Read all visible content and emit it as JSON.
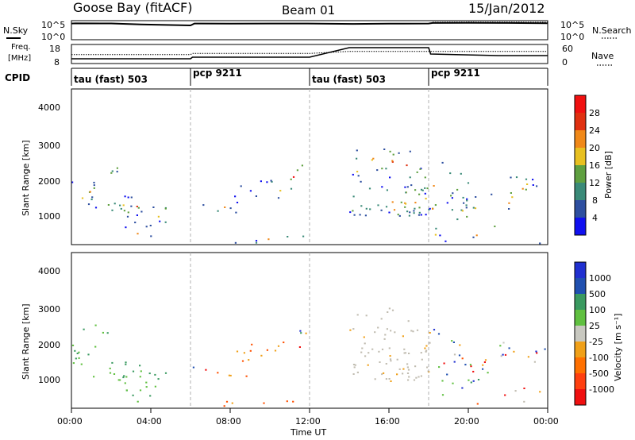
{
  "header": {
    "station": "Goose Bay (fitACF)",
    "beam": "Beam 01",
    "date": "15/Jan/2012"
  },
  "left_labels": {
    "nsky": "N.Sky",
    "freq_line1": "Freq.",
    "freq_line2": "[MHz]",
    "cpid": "CPID"
  },
  "right_labels": {
    "nsearch": "N.Search",
    "nave": "Nave"
  },
  "time_axis": {
    "title": "Time UT",
    "ticks": [
      "00:00",
      "04:00",
      "08:00",
      "12:00",
      "16:00",
      "20:00",
      "00:00"
    ]
  },
  "colors": {
    "power_scale": [
      "#1010f0",
      "#2e4fa0",
      "#3a8a78",
      "#5fa040",
      "#e8c020",
      "#f08818",
      "#e03010",
      "#f01010"
    ],
    "velocity_scale": [
      "#f01010",
      "#ff5000",
      "#f0a018",
      "#c0bcb0",
      "#c8c8c0",
      "#60c040",
      "#3a9a60",
      "#2050b0",
      "#2030d0"
    ],
    "grey_line": "#b0b0b0"
  },
  "chart_data": [
    {
      "type": "line",
      "title": "N.Sky / N.Search",
      "x_hours": [
        0,
        0.2,
        2,
        3.5,
        6,
        6.2,
        8,
        10,
        11.9,
        12.1,
        14,
        14.2,
        16,
        18,
        18.2,
        20,
        22,
        24
      ],
      "series": [
        {
          "name": "N.Sky",
          "values": [
            40000.0,
            45000.0,
            42000.0,
            20000.0,
            10000.0,
            40000.0,
            38000.0,
            40000.0,
            40000.0,
            null,
            null,
            30000.0,
            35000.0,
            40000.0,
            60000.0,
            65000.0,
            60000.0,
            50000.0
          ]
        },
        {
          "name": "N.Search",
          "values": [
            null,
            null,
            null,
            null,
            null,
            null,
            null,
            null,
            null,
            null,
            null,
            null,
            null,
            null,
            100000.0,
            110000.0,
            105000.0,
            100000.0
          ]
        }
      ],
      "ylabels": [
        "10^5",
        "10^0"
      ],
      "ylabels_right": [
        "10^5",
        "10^0"
      ]
    },
    {
      "type": "line",
      "title": "Freq / Nave",
      "x_hours": [
        0,
        6,
        6.1,
        12,
        14,
        18,
        18.1,
        21.5,
        24
      ],
      "series": [
        {
          "name": "Freq.",
          "values": [
            10,
            10,
            11,
            11,
            17,
            17,
            13,
            12,
            12
          ]
        },
        {
          "name": "Nave",
          "values": [
            28,
            28,
            32,
            32,
            40,
            40,
            40,
            40,
            40
          ]
        }
      ],
      "ylim_left": [
        8,
        18
      ],
      "ylim_right": [
        0,
        60
      ],
      "yticks_left": [
        "18",
        "8"
      ],
      "yticks_right": [
        "60",
        "0"
      ]
    },
    {
      "type": "table",
      "title": "CPID",
      "segments": [
        {
          "start_h": 0,
          "label": "tau (fast) 503"
        },
        {
          "start_h": 6,
          "label": "pcp 9211"
        },
        {
          "start_h": 12,
          "label": "tau (fast) 503"
        },
        {
          "start_h": 18,
          "label": "pcp 9211"
        }
      ]
    },
    {
      "type": "heatmap",
      "title": "Power",
      "ylabel": "Slant Range [km]",
      "yticks": [
        "1000",
        "2000",
        "3000",
        "4000"
      ],
      "ylim": [
        200,
        4500
      ],
      "colorbar_label": "Power [dB]",
      "colorbar_ticks": [
        "4",
        "8",
        "12",
        "16",
        "20",
        "24",
        "28"
      ]
    },
    {
      "type": "heatmap",
      "title": "Velocity",
      "ylabel": "Slant Range [km]",
      "yticks": [
        "1000",
        "2000",
        "3000",
        "4000"
      ],
      "ylim": [
        200,
        4500
      ],
      "colorbar_label": "Velocity [m s⁻¹]",
      "colorbar_ticks": [
        "1000",
        "500",
        "100",
        "25",
        "-25",
        "-100",
        "-500",
        "-1000"
      ]
    }
  ]
}
